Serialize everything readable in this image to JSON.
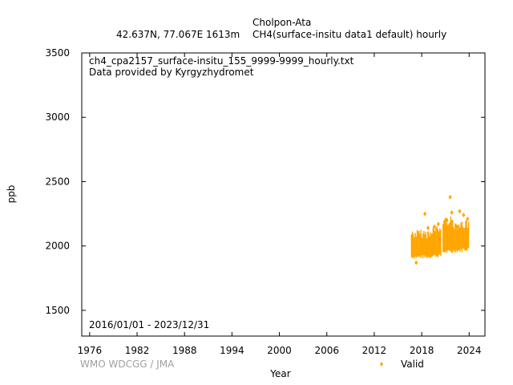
{
  "header": {
    "station": "Cholpon-Ata",
    "location": "42.637N, 77.067E 1613m",
    "dataset": "CH4(surface-insitu data1 default) hourly"
  },
  "annotations": {
    "filename": "ch4_cpa2157_surface-insitu_155_9999-9999_hourly.txt",
    "provider": "Data provided by Kyrgyzhydromet",
    "date_range": "2016/01/01 - 2023/12/31"
  },
  "footer": {
    "credit": "WMO WDCGG / JMA"
  },
  "colors": {
    "valid": "#ffa500"
  },
  "chart_data": {
    "type": "scatter",
    "xlabel": "Year",
    "ylabel": "ppb",
    "xlim": [
      1975.0,
      2026.0
    ],
    "ylim": [
      1300,
      3500
    ],
    "xticks": [
      1976,
      1982,
      1988,
      1994,
      2000,
      2006,
      2012,
      2018,
      2024
    ],
    "yticks": [
      1500,
      2000,
      2500,
      3000,
      3500
    ],
    "grid": false,
    "legend": {
      "position": "bottom-right",
      "entries": [
        "Valid"
      ]
    },
    "series": [
      {
        "name": "Valid",
        "color": "#ffa500",
        "segments": [
          {
            "x_start": 2016.7,
            "x_end": 2019.2,
            "low": 1900,
            "high": 2130
          },
          {
            "x_start": 2019.2,
            "x_end": 2020.5,
            "low": 1910,
            "high": 2160
          },
          {
            "x_start": 2020.7,
            "x_end": 2022.0,
            "low": 1940,
            "high": 2230
          },
          {
            "x_start": 2022.0,
            "x_end": 2023.2,
            "low": 1950,
            "high": 2200
          },
          {
            "x_start": 2023.2,
            "x_end": 2024.0,
            "low": 1960,
            "high": 2200
          }
        ],
        "points": [
          {
            "x": 2017.0,
            "y": 2020
          },
          {
            "x": 2017.3,
            "y": 1870
          },
          {
            "x": 2018.4,
            "y": 2250
          },
          {
            "x": 2018.8,
            "y": 2140
          },
          {
            "x": 2019.6,
            "y": 2150
          },
          {
            "x": 2020.1,
            "y": 2170
          },
          {
            "x": 2021.2,
            "y": 2200
          },
          {
            "x": 2021.6,
            "y": 2380
          },
          {
            "x": 2021.8,
            "y": 2260
          },
          {
            "x": 2022.5,
            "y": 2150
          },
          {
            "x": 2022.8,
            "y": 2270
          },
          {
            "x": 2023.3,
            "y": 2240
          },
          {
            "x": 2023.8,
            "y": 2210
          }
        ]
      }
    ]
  }
}
